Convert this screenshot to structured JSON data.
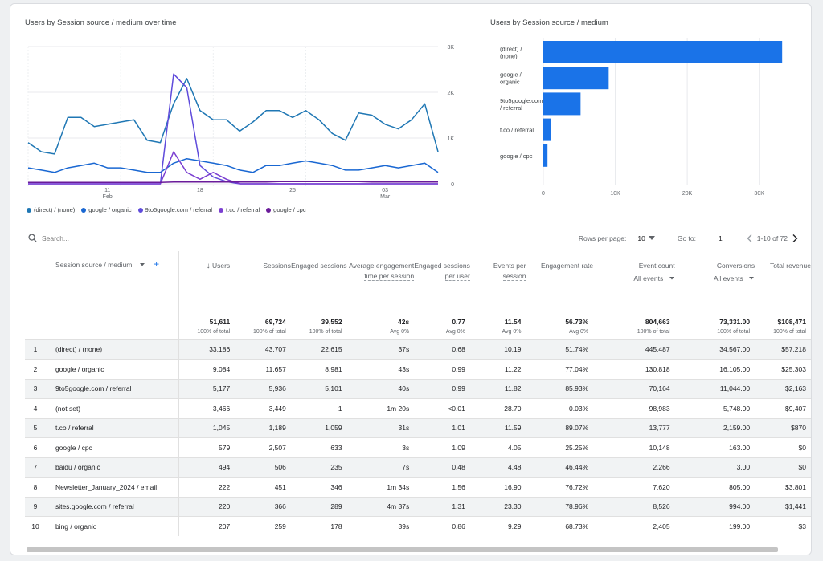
{
  "line_chart": {
    "title": "Users by Session source / medium over time",
    "y_ticks": [
      "3K",
      "2K",
      "1K",
      "0"
    ],
    "x_ticks": [
      {
        "day": "11",
        "month": "Feb"
      },
      {
        "day": "18",
        "month": ""
      },
      {
        "day": "25",
        "month": ""
      },
      {
        "day": "03",
        "month": "Mar"
      }
    ]
  },
  "bar_chart": {
    "title": "Users by Session source / medium",
    "x_ticks": [
      "0",
      "10K",
      "20K",
      "30K"
    ]
  },
  "legend": [
    {
      "label": "(direct) / (none)",
      "color": "#1f77b4"
    },
    {
      "label": "google / organic",
      "color": "#1967d2"
    },
    {
      "label": "9to5google.com / referral",
      "color": "#5f4bdb"
    },
    {
      "label": "t.co / referral",
      "color": "#7b3fd1"
    },
    {
      "label": "google / cpc",
      "color": "#6a1b9a"
    }
  ],
  "chart_data": [
    {
      "type": "line",
      "title": "Users by Session source / medium over time",
      "x": [
        "Feb 5",
        "Feb 6",
        "Feb 7",
        "Feb 8",
        "Feb 9",
        "Feb 10",
        "Feb 11",
        "Feb 12",
        "Feb 13",
        "Feb 14",
        "Feb 15",
        "Feb 16",
        "Feb 17",
        "Feb 18",
        "Feb 19",
        "Feb 20",
        "Feb 21",
        "Feb 22",
        "Feb 23",
        "Feb 24",
        "Feb 25",
        "Feb 26",
        "Feb 27",
        "Feb 28",
        "Mar 1",
        "Mar 2",
        "Mar 3",
        "Mar 4",
        "Mar 5",
        "Mar 6",
        "Mar 7",
        "Mar 8"
      ],
      "ylim": [
        0,
        3000
      ],
      "series": [
        {
          "name": "(direct) / (none)",
          "color": "#1f77b4",
          "values": [
            900,
            700,
            650,
            1450,
            1450,
            1250,
            1300,
            1350,
            1400,
            950,
            900,
            1750,
            2300,
            1600,
            1400,
            1400,
            1150,
            1350,
            1600,
            1600,
            1450,
            1600,
            1400,
            1100,
            950,
            1550,
            1500,
            1300,
            1200,
            1400,
            1750,
            700
          ]
        },
        {
          "name": "google / organic",
          "color": "#1967d2",
          "values": [
            350,
            300,
            250,
            350,
            400,
            450,
            350,
            350,
            300,
            250,
            250,
            450,
            550,
            500,
            450,
            400,
            300,
            250,
            400,
            400,
            450,
            500,
            450,
            400,
            300,
            300,
            350,
            400,
            350,
            400,
            450,
            250
          ]
        },
        {
          "name": "9to5google.com / referral",
          "color": "#5f4bdb",
          "values": [
            0,
            0,
            0,
            0,
            0,
            0,
            0,
            0,
            0,
            0,
            0,
            2400,
            2100,
            400,
            150,
            50,
            0,
            0,
            0,
            0,
            0,
            0,
            0,
            0,
            0,
            0,
            0,
            0,
            0,
            0,
            0,
            0
          ]
        },
        {
          "name": "t.co / referral",
          "color": "#7b3fd1",
          "values": [
            0,
            0,
            0,
            0,
            0,
            0,
            0,
            0,
            0,
            0,
            0,
            700,
            250,
            100,
            250,
            100,
            0,
            0,
            0,
            0,
            0,
            0,
            0,
            0,
            0,
            0,
            0,
            0,
            0,
            0,
            0,
            0
          ]
        },
        {
          "name": "google / cpc",
          "color": "#6a1b9a",
          "values": [
            30,
            30,
            30,
            30,
            30,
            30,
            30,
            30,
            30,
            30,
            30,
            40,
            40,
            40,
            40,
            40,
            40,
            40,
            40,
            50,
            50,
            50,
            50,
            50,
            50,
            50,
            40,
            40,
            40,
            40,
            40,
            40
          ]
        }
      ]
    },
    {
      "type": "bar",
      "title": "Users by Session source / medium",
      "categories": [
        "(direct) / (none)",
        "google / organic",
        "9to5google.com / referral",
        "t.co / referral",
        "google / cpc"
      ],
      "values": [
        33186,
        9084,
        5177,
        1045,
        579
      ],
      "xlim": [
        0,
        33500
      ],
      "color": "#1a73e8"
    }
  ],
  "table": {
    "search_placeholder": "Search...",
    "rows_per_page_label": "Rows per page:",
    "rows_per_page_value": "10",
    "goto_label": "Go to:",
    "goto_value": "1",
    "range_text": "1-10 of 72",
    "dimension_header": "Session source / medium",
    "columns": [
      {
        "label": "Users",
        "sub": "",
        "total": "51,611",
        "total_sub": "100% of total"
      },
      {
        "label": "Sessions",
        "sub": "",
        "total": "69,724",
        "total_sub": "100% of total"
      },
      {
        "label": "Engaged sessions",
        "sub": "",
        "total": "39,552",
        "total_sub": "100% of total"
      },
      {
        "label": "Average engagement time per session",
        "sub": "",
        "total": "42s",
        "total_sub": "Avg 0%"
      },
      {
        "label": "Engaged sessions per user",
        "sub": "",
        "total": "0.77",
        "total_sub": "Avg 0%"
      },
      {
        "label": "Events per session",
        "sub": "",
        "total": "11.54",
        "total_sub": "Avg 0%"
      },
      {
        "label": "Engagement rate",
        "sub": "",
        "total": "56.73%",
        "total_sub": "Avg 0%"
      },
      {
        "label": "Event count",
        "sub": "All events",
        "total": "804,663",
        "total_sub": "100% of total"
      },
      {
        "label": "Conversions",
        "sub": "All events",
        "total": "73,331.00",
        "total_sub": "100% of total"
      },
      {
        "label": "Total revenue",
        "sub": "",
        "total": "$108,471",
        "total_sub": "100% of total"
      }
    ],
    "rows": [
      {
        "rank": "1",
        "dim": "(direct) / (none)",
        "cells": [
          "33,186",
          "43,707",
          "22,615",
          "37s",
          "0.68",
          "10.19",
          "51.74%",
          "445,487",
          "34,567.00",
          "$57,218"
        ]
      },
      {
        "rank": "2",
        "dim": "google / organic",
        "cells": [
          "9,084",
          "11,657",
          "8,981",
          "43s",
          "0.99",
          "11.22",
          "77.04%",
          "130,818",
          "16,105.00",
          "$25,303"
        ]
      },
      {
        "rank": "3",
        "dim": "9to5google.com / referral",
        "cells": [
          "5,177",
          "5,936",
          "5,101",
          "40s",
          "0.99",
          "11.82",
          "85.93%",
          "70,164",
          "11,044.00",
          "$2,163"
        ]
      },
      {
        "rank": "4",
        "dim": "(not set)",
        "cells": [
          "3,466",
          "3,449",
          "1",
          "1m 20s",
          "<0.01",
          "28.70",
          "0.03%",
          "98,983",
          "5,748.00",
          "$9,407"
        ]
      },
      {
        "rank": "5",
        "dim": "t.co / referral",
        "cells": [
          "1,045",
          "1,189",
          "1,059",
          "31s",
          "1.01",
          "11.59",
          "89.07%",
          "13,777",
          "2,159.00",
          "$870"
        ]
      },
      {
        "rank": "6",
        "dim": "google / cpc",
        "cells": [
          "579",
          "2,507",
          "633",
          "3s",
          "1.09",
          "4.05",
          "25.25%",
          "10,148",
          "163.00",
          "$0"
        ]
      },
      {
        "rank": "7",
        "dim": "baidu / organic",
        "cells": [
          "494",
          "506",
          "235",
          "7s",
          "0.48",
          "4.48",
          "46.44%",
          "2,266",
          "3.00",
          "$0"
        ]
      },
      {
        "rank": "8",
        "dim": "Newsletter_January_2024 / email",
        "cells": [
          "222",
          "451",
          "346",
          "1m 34s",
          "1.56",
          "16.90",
          "76.72%",
          "7,620",
          "805.00",
          "$3,801"
        ]
      },
      {
        "rank": "9",
        "dim": "sites.google.com / referral",
        "cells": [
          "220",
          "366",
          "289",
          "4m 37s",
          "1.31",
          "23.30",
          "78.96%",
          "8,526",
          "994.00",
          "$1,441"
        ]
      },
      {
        "rank": "10",
        "dim": "bing / organic",
        "cells": [
          "207",
          "259",
          "178",
          "39s",
          "0.86",
          "9.29",
          "68.73%",
          "2,405",
          "199.00",
          "$3"
        ]
      }
    ]
  }
}
